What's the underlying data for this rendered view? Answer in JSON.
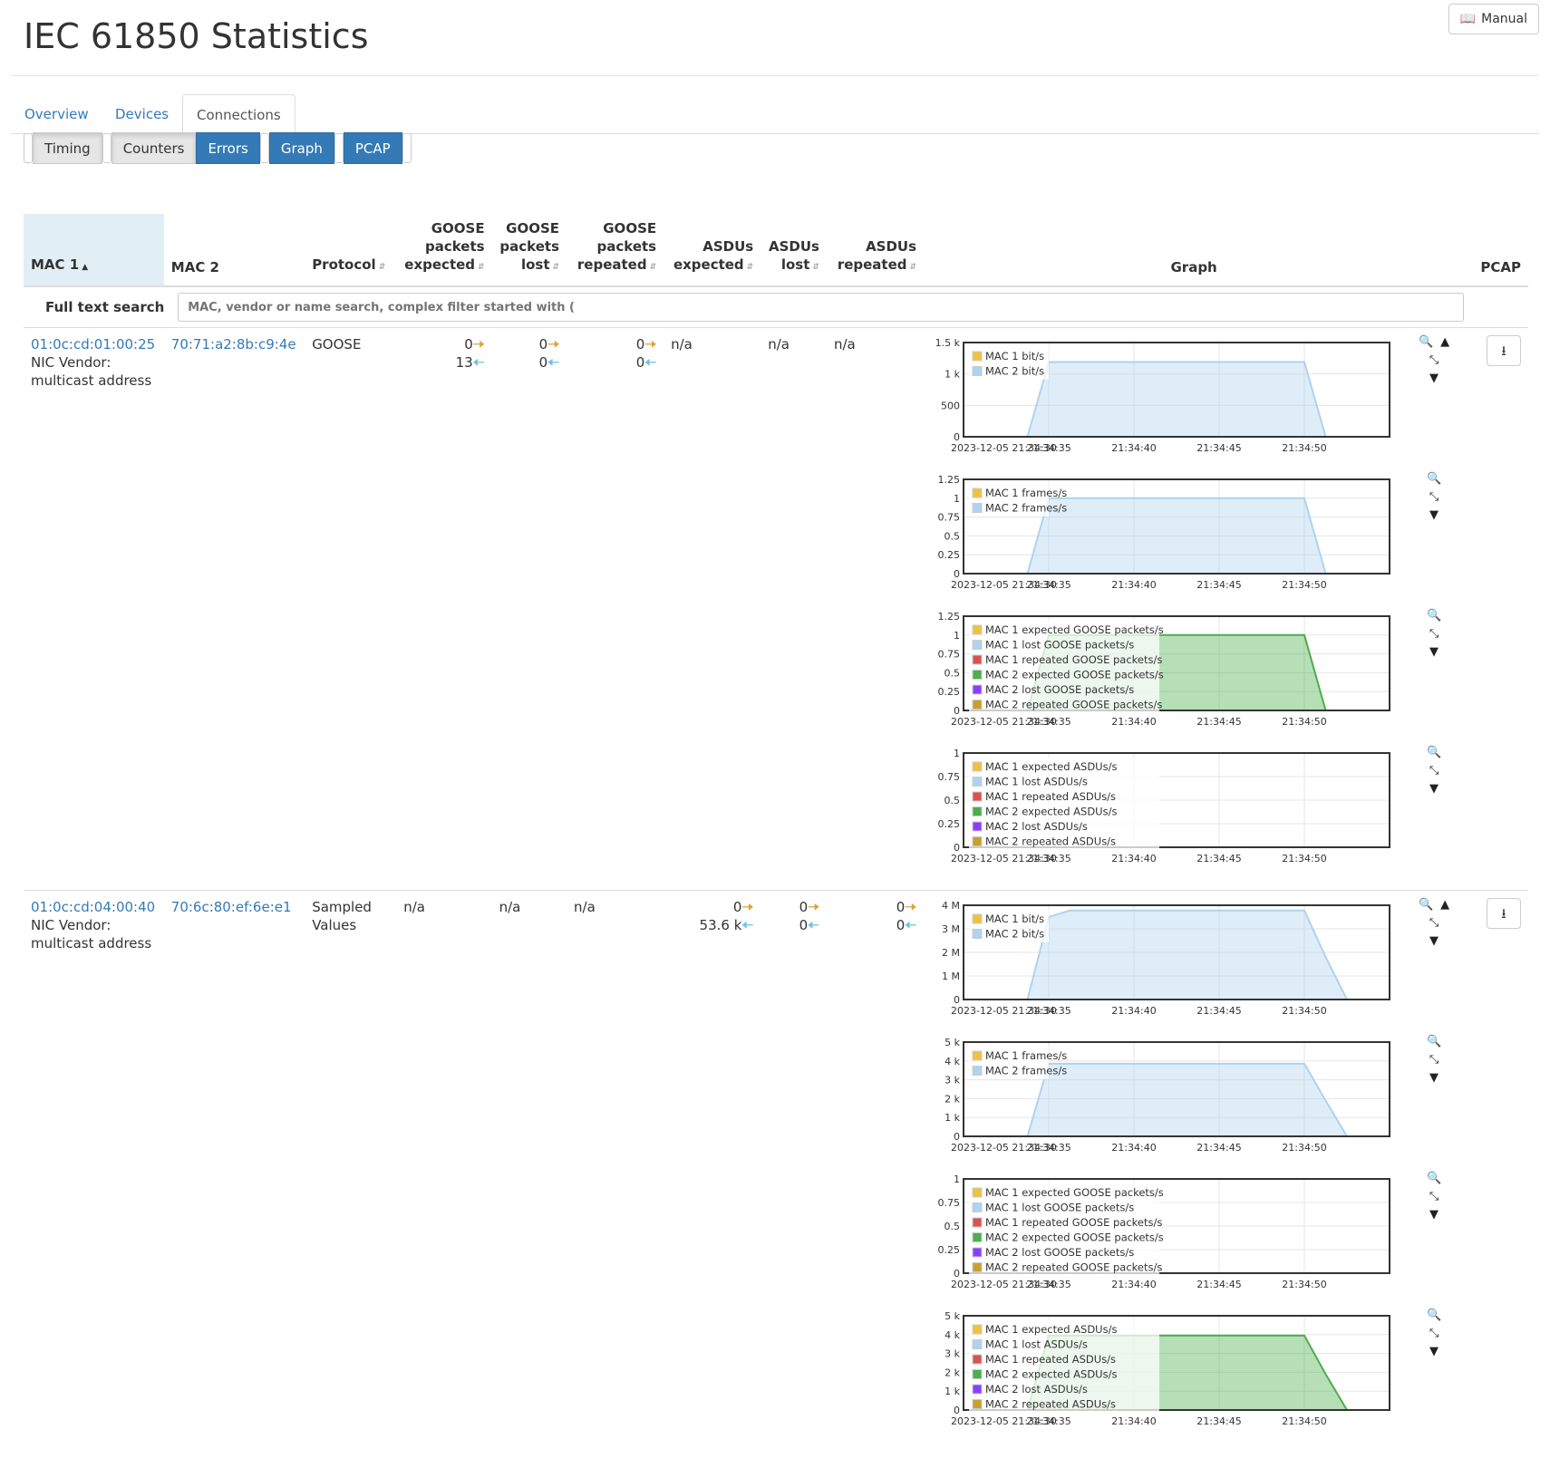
{
  "page": {
    "title": "IEC 61850 Statistics",
    "manual_label": "Manual"
  },
  "tabs": [
    {
      "label": "Overview",
      "active": false
    },
    {
      "label": "Devices",
      "active": false
    },
    {
      "label": "Connections",
      "active": true
    }
  ],
  "toggles": [
    {
      "label": "Timing",
      "on": false
    },
    {
      "label": "Counters",
      "on": false
    },
    {
      "label": "Errors",
      "on": true
    },
    {
      "label": "Graph",
      "on": true
    },
    {
      "label": "PCAP",
      "on": true
    }
  ],
  "table": {
    "headers": {
      "mac1": "MAC 1",
      "mac2": "MAC 2",
      "protocol": "Protocol",
      "goose_expected": [
        "GOOSE",
        "packets",
        "expected"
      ],
      "goose_lost": [
        "GOOSE",
        "packets",
        "lost"
      ],
      "goose_repeated": [
        "GOOSE",
        "packets",
        "repeated"
      ],
      "asdus_expected": [
        "ASDUs",
        "expected"
      ],
      "asdus_lost": [
        "ASDUs",
        "lost"
      ],
      "asdus_repeated": [
        "ASDUs",
        "repeated"
      ],
      "graph": "Graph",
      "pcap": "PCAP"
    },
    "search": {
      "label": "Full text search",
      "placeholder": "MAC, vendor or name search, complex filter started with ("
    }
  },
  "colors": {
    "mac1_bits": "#f0c040",
    "mac2_bits": "#aed3ee",
    "mac1_expected": "#f0c040",
    "mac1_lost": "#aed3ee",
    "mac1_repeated": "#d9534f",
    "mac2_expected": "#4cae4c",
    "mac2_lost": "#8a3ffc",
    "mac2_repeated": "#c8a030",
    "arrow_out": "#e0a13a",
    "arrow_in": "#6ec1e8"
  },
  "rows": [
    {
      "mac1": "01:0c:cd:01:00:25",
      "mac1_vendor_label": "NIC Vendor:",
      "mac1_vendor": "multicast address",
      "mac2": "70:71:a2:8b:c9:4e",
      "protocol": "GOOSE",
      "goose_expected": [
        "0",
        "13"
      ],
      "goose_lost": [
        "0",
        "0"
      ],
      "goose_repeated": [
        "0",
        "0"
      ],
      "asdus_expected": "n/a",
      "asdus_lost": "n/a",
      "asdus_repeated": "n/a",
      "charts": [
        {
          "type": "area",
          "x": [
            "2023-12-05 21:34:30",
            "21:34:35",
            "21:34:40",
            "21:34:45",
            "21:34:50"
          ],
          "ylim": [
            0,
            1500
          ],
          "yticks": [
            "0",
            "500",
            "1 k",
            "1.5 k"
          ],
          "legend": [
            "MAC 1 bit/s",
            "MAC 2 bit/s"
          ],
          "series": [
            {
              "name": "MAC 1 bit/s",
              "color": "#f0c040",
              "values": [
                [
                  0,
                  0
                ],
                [
                  20,
                  0
                ]
              ]
            },
            {
              "name": "MAC 2 bit/s",
              "color": "#aed3ee",
              "values": [
                [
                  0,
                  0
                ],
                [
                  3,
                  0
                ],
                [
                  4,
                  1190
                ],
                [
                  16,
                  1190
                ],
                [
                  17,
                  0
                ],
                [
                  20,
                  0
                ]
              ]
            }
          ]
        },
        {
          "type": "area",
          "x": [
            "2023-12-05 21:34:30",
            "21:34:35",
            "21:34:40",
            "21:34:45",
            "21:34:50"
          ],
          "ylim": [
            0,
            1.25
          ],
          "yticks": [
            "0",
            "0.25",
            "0.5",
            "0.75",
            "1",
            "1.25"
          ],
          "legend": [
            "MAC 1 frames/s",
            "MAC 2 frames/s"
          ],
          "series": [
            {
              "name": "MAC 1 frames/s",
              "color": "#f0c040",
              "values": [
                [
                  0,
                  0
                ],
                [
                  20,
                  0
                ]
              ]
            },
            {
              "name": "MAC 2 frames/s",
              "color": "#aed3ee",
              "values": [
                [
                  0,
                  0
                ],
                [
                  3,
                  0
                ],
                [
                  4,
                  1
                ],
                [
                  16,
                  1
                ],
                [
                  17,
                  0
                ],
                [
                  20,
                  0
                ]
              ]
            }
          ]
        },
        {
          "type": "area",
          "x": [
            "2023-12-05 21:34:30",
            "21:34:35",
            "21:34:40",
            "21:34:45",
            "21:34:50"
          ],
          "ylim": [
            0,
            1.25
          ],
          "yticks": [
            "0",
            "0.25",
            "0.5",
            "0.75",
            "1",
            "1.25"
          ],
          "legend": [
            "MAC 1 expected GOOSE packets/s",
            "MAC 1 lost GOOSE packets/s",
            "MAC 1 repeated GOOSE packets/s",
            "MAC 2 expected GOOSE packets/s",
            "MAC 2 lost GOOSE packets/s",
            "MAC 2 repeated GOOSE packets/s"
          ],
          "series": [
            {
              "name": "MAC 2 expected GOOSE packets/s",
              "color": "#4cae4c",
              "values": [
                [
                  0,
                  0
                ],
                [
                  3,
                  0
                ],
                [
                  4,
                  1
                ],
                [
                  16,
                  1
                ],
                [
                  17,
                  0
                ],
                [
                  20,
                  0
                ]
              ]
            },
            {
              "name": "MAC 1 expected GOOSE packets/s",
              "color": "#f0c040",
              "values": [
                [
                  0,
                  0
                ],
                [
                  20,
                  0
                ]
              ]
            }
          ]
        },
        {
          "type": "area",
          "x": [
            "2023-12-05 21:34:30",
            "21:34:35",
            "21:34:40",
            "21:34:45",
            "21:34:50"
          ],
          "ylim": [
            0,
            1
          ],
          "yticks": [
            "0",
            "0.25",
            "0.5",
            "0.75",
            "1"
          ],
          "legend": [
            "MAC 1 expected ASDUs/s",
            "MAC 1 lost ASDUs/s",
            "MAC 1 repeated ASDUs/s",
            "MAC 2 expected ASDUs/s",
            "MAC 2 lost ASDUs/s",
            "MAC 2 repeated ASDUs/s"
          ],
          "series": [
            {
              "name": "MAC 1 expected ASDUs/s",
              "color": "#f0c040",
              "values": [
                [
                  0,
                  0
                ],
                [
                  20,
                  0
                ]
              ]
            }
          ]
        }
      ]
    },
    {
      "mac1": "01:0c:cd:04:00:40",
      "mac1_vendor_label": "NIC Vendor:",
      "mac1_vendor": "multicast address",
      "mac2": "70:6c:80:ef:6e:e1",
      "protocol": "Sampled Values",
      "goose_expected": "n/a",
      "goose_lost": "n/a",
      "goose_repeated": "n/a",
      "asdus_expected": [
        "0",
        "53.6 k"
      ],
      "asdus_lost": [
        "0",
        "0"
      ],
      "asdus_repeated": [
        "0",
        "0"
      ],
      "charts": [
        {
          "type": "area",
          "x": [
            "2023-12-05 21:34:30",
            "21:34:35",
            "21:34:40",
            "21:34:45",
            "21:34:50"
          ],
          "ylim": [
            0,
            4000000
          ],
          "yticks": [
            "0",
            "1 M",
            "2 M",
            "3 M",
            "4 M"
          ],
          "legend": [
            "MAC 1 bit/s",
            "MAC 2 bit/s"
          ],
          "series": [
            {
              "name": "MAC 1 bit/s",
              "color": "#f0c040",
              "values": [
                [
                  0,
                  0
                ],
                [
                  20,
                  0
                ]
              ]
            },
            {
              "name": "MAC 2 bit/s",
              "color": "#aed3ee",
              "values": [
                [
                  0,
                  0
                ],
                [
                  3,
                  0
                ],
                [
                  4,
                  3500000
                ],
                [
                  5,
                  3780000
                ],
                [
                  16,
                  3780000
                ],
                [
                  17,
                  1800000
                ],
                [
                  18,
                  0
                ],
                [
                  20,
                  0
                ]
              ]
            }
          ]
        },
        {
          "type": "area",
          "x": [
            "2023-12-05 21:34:30",
            "21:34:35",
            "21:34:40",
            "21:34:45",
            "21:34:50"
          ],
          "ylim": [
            0,
            5000
          ],
          "yticks": [
            "0",
            "1 k",
            "2 k",
            "3 k",
            "4 k",
            "5 k"
          ],
          "legend": [
            "MAC 1 frames/s",
            "MAC 2 frames/s"
          ],
          "series": [
            {
              "name": "MAC 1 frames/s",
              "color": "#f0c040",
              "values": [
                [
                  0,
                  0
                ],
                [
                  20,
                  0
                ]
              ]
            },
            {
              "name": "MAC 2 frames/s",
              "color": "#aed3ee",
              "values": [
                [
                  0,
                  0
                ],
                [
                  3,
                  0
                ],
                [
                  4,
                  3850
                ],
                [
                  16,
                  3850
                ],
                [
                  17,
                  1900
                ],
                [
                  18,
                  0
                ],
                [
                  20,
                  0
                ]
              ]
            }
          ]
        },
        {
          "type": "area",
          "x": [
            "2023-12-05 21:34:30",
            "21:34:35",
            "21:34:40",
            "21:34:45",
            "21:34:50"
          ],
          "ylim": [
            0,
            1
          ],
          "yticks": [
            "0",
            "0.25",
            "0.5",
            "0.75",
            "1"
          ],
          "legend": [
            "MAC 1 expected GOOSE packets/s",
            "MAC 1 lost GOOSE packets/s",
            "MAC 1 repeated GOOSE packets/s",
            "MAC 2 expected GOOSE packets/s",
            "MAC 2 lost GOOSE packets/s",
            "MAC 2 repeated GOOSE packets/s"
          ],
          "series": [
            {
              "name": "MAC 1 expected GOOSE packets/s",
              "color": "#f0c040",
              "values": [
                [
                  0,
                  0
                ],
                [
                  20,
                  0
                ]
              ]
            }
          ]
        },
        {
          "type": "area",
          "x": [
            "2023-12-05 21:34:30",
            "21:34:35",
            "21:34:40",
            "21:34:45",
            "21:34:50"
          ],
          "ylim": [
            0,
            5000
          ],
          "yticks": [
            "0",
            "1 k",
            "2 k",
            "3 k",
            "4 k",
            "5 k"
          ],
          "legend": [
            "MAC 1 expected ASDUs/s",
            "MAC 1 lost ASDUs/s",
            "MAC 1 repeated ASDUs/s",
            "MAC 2 expected ASDUs/s",
            "MAC 2 lost ASDUs/s",
            "MAC 2 repeated ASDUs/s"
          ],
          "series": [
            {
              "name": "MAC 2 expected ASDUs/s",
              "color": "#4cae4c",
              "values": [
                [
                  0,
                  0
                ],
                [
                  3,
                  0
                ],
                [
                  4,
                  3950
                ],
                [
                  16,
                  3950
                ],
                [
                  17,
                  1900
                ],
                [
                  18,
                  0
                ],
                [
                  20,
                  0
                ]
              ]
            },
            {
              "name": "MAC 1 expected ASDUs/s",
              "color": "#f0c040",
              "values": [
                [
                  0,
                  0
                ],
                [
                  20,
                  0
                ]
              ]
            }
          ]
        }
      ]
    }
  ]
}
